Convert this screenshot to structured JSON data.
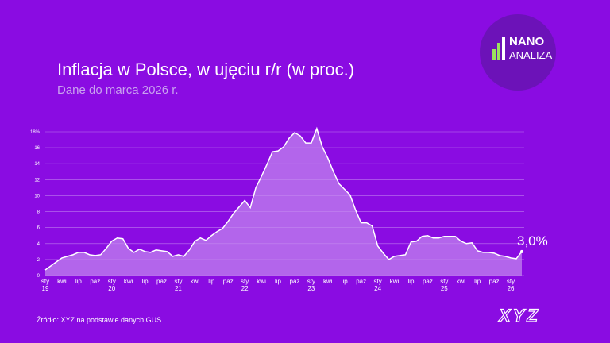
{
  "chart_data": {
    "type": "area",
    "title": "Inflacja w Polsce, w ujęciu r/r (w proc.)",
    "subtitle": "Dane do marca 2026 r.",
    "source": "Źródło:  XYZ na podstawie danych GUS",
    "logo": {
      "top": "NANO",
      "bottom": "ANALIZA"
    },
    "brand": "XYZ",
    "color": "#ffffff",
    "fill": "#c58cf0",
    "grid": true,
    "categories": [
      "sty\n19",
      null,
      null,
      "kwi",
      null,
      null,
      "lip",
      null,
      null,
      "paź",
      null,
      null,
      "sty\n20",
      null,
      null,
      "kwi",
      null,
      null,
      "lip",
      null,
      null,
      "paź",
      null,
      null,
      "sty\n21",
      null,
      null,
      "kwi",
      null,
      null,
      "lip",
      null,
      null,
      "paź",
      null,
      null,
      "sty\n22",
      null,
      null,
      "kwi",
      null,
      null,
      "lip",
      null,
      null,
      "paź",
      null,
      null,
      "sty\n23",
      null,
      null,
      "kwi",
      null,
      null,
      "lip",
      null,
      null,
      "paź",
      null,
      null,
      "sty\n24",
      null,
      null,
      "kwi",
      null,
      null,
      "lip",
      null,
      null,
      "paź",
      null,
      null,
      "sty\n25",
      null,
      null,
      "kwi",
      null,
      null,
      "lip",
      null,
      null,
      "paź",
      null,
      null,
      "sty\n26",
      null,
      null
    ],
    "values": [
      0.7,
      1.2,
      1.7,
      2.2,
      2.4,
      2.6,
      2.9,
      2.9,
      2.6,
      2.5,
      2.6,
      3.4,
      4.3,
      4.7,
      4.6,
      3.4,
      2.9,
      3.3,
      3.0,
      2.9,
      3.2,
      3.1,
      3.0,
      2.4,
      2.6,
      2.4,
      3.2,
      4.3,
      4.7,
      4.4,
      5.0,
      5.5,
      5.9,
      6.8,
      7.8,
      8.6,
      9.4,
      8.5,
      11.0,
      12.4,
      13.9,
      15.5,
      15.6,
      16.1,
      17.2,
      17.9,
      17.5,
      16.6,
      16.6,
      18.4,
      16.1,
      14.7,
      13.0,
      11.5,
      10.8,
      10.1,
      8.2,
      6.6,
      6.6,
      6.2,
      3.7,
      2.8,
      2.0,
      2.4,
      2.5,
      2.6,
      4.2,
      4.3,
      4.9,
      5.0,
      4.7,
      4.7,
      4.9,
      4.9,
      4.9,
      4.3,
      4.0,
      4.1,
      3.1,
      2.9,
      2.9,
      2.8,
      2.5,
      2.4,
      2.2,
      2.1,
      3.0
    ],
    "value_labels": [
      null,
      null,
      null,
      null,
      null,
      null,
      null,
      null,
      null,
      null,
      null,
      null,
      null,
      null,
      null,
      null,
      null,
      null,
      null,
      null,
      null,
      null,
      null,
      null,
      null,
      null,
      null,
      null,
      null,
      null,
      null,
      null,
      null,
      null,
      null,
      null,
      null,
      null,
      null,
      null,
      null,
      null,
      null,
      null,
      null,
      null,
      null,
      null,
      null,
      null,
      null,
      null,
      null,
      null,
      null,
      null,
      null,
      null,
      null,
      null,
      null,
      null,
      null,
      null,
      null,
      null,
      null,
      null,
      null,
      null,
      null,
      null,
      null,
      null,
      null,
      null,
      null,
      null,
      null,
      null,
      null,
      null,
      null,
      null,
      null,
      null,
      "3,0%"
    ],
    "ylim": [
      0,
      18
    ],
    "yticks": [
      0,
      2,
      4,
      6,
      8,
      10,
      12,
      14,
      16,
      {
        "value": 18,
        "label": "18%"
      }
    ]
  }
}
